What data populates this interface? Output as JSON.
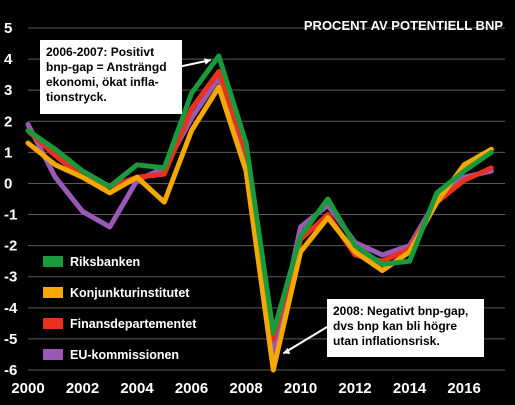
{
  "chart_data": {
    "type": "line",
    "title": "PROCENT AV POTENTIELL BNP",
    "xlabel": "",
    "ylabel": "",
    "x": [
      2000,
      2001,
      2002,
      2003,
      2004,
      2005,
      2006,
      2007,
      2008,
      2009,
      2010,
      2011,
      2012,
      2013,
      2014,
      2015,
      2016,
      2017
    ],
    "x_ticks": [
      "2000",
      "2002",
      "2004",
      "2006",
      "2008",
      "2010",
      "2012",
      "2014",
      "2016"
    ],
    "y_ticks": [
      "5",
      "4",
      "3",
      "2",
      "1",
      "0",
      "-1",
      "-2",
      "-3",
      "-4",
      "-5",
      "-6"
    ],
    "xlim": [
      2000,
      2017.5
    ],
    "ylim": [
      -6,
      5
    ],
    "grid": true,
    "legend_position": "bottom-left",
    "series": [
      {
        "name": "EU-kommissionen",
        "color": "#9b59b6",
        "values": [
          1.9,
          0.2,
          -0.9,
          -1.4,
          0.1,
          0.5,
          2.1,
          3.4,
          0.8,
          -5.5,
          -1.4,
          -0.7,
          -1.9,
          -2.3,
          -2.0,
          -0.5,
          0.2,
          0.4
        ]
      },
      {
        "name": "Finansdepartementet",
        "color": "#e8321e",
        "values": [
          1.7,
          0.9,
          0.2,
          -0.1,
          0.2,
          0.3,
          2.4,
          3.6,
          1.0,
          -5.0,
          -1.8,
          -1.0,
          -2.3,
          -2.5,
          -2.1,
          -0.6,
          0.1,
          0.5
        ]
      },
      {
        "name": "Konjunkturinstitutet",
        "color": "#f5a800",
        "values": [
          1.3,
          0.6,
          0.2,
          -0.3,
          0.2,
          -0.6,
          1.7,
          3.1,
          0.4,
          -6.0,
          -2.2,
          -1.1,
          -2.2,
          -2.8,
          -2.2,
          -0.6,
          0.6,
          1.1
        ]
      },
      {
        "name": "Riksbanken",
        "color": "#1a9a3c",
        "values": [
          1.7,
          1.1,
          0.4,
          -0.1,
          0.6,
          0.5,
          2.9,
          4.1,
          1.3,
          -4.8,
          -1.7,
          -0.5,
          -2.0,
          -2.6,
          -2.5,
          -0.3,
          0.4,
          1.0
        ]
      }
    ],
    "legend_order": [
      "Riksbanken",
      "Konjunkturinstitutet",
      "Finansdepartementet",
      "EU-kommissionen"
    ],
    "annotations": [
      {
        "lines": [
          "2006-2007: Positivt",
          "bnp-gap = Ansträngd",
          "ekonomi, ökat infla-",
          "tionstryck."
        ],
        "target": {
          "x": 2007,
          "y": 4.1
        }
      },
      {
        "lines": [
          "2008: Negativt bnp-gap,",
          "dvs bnp kan bli högre",
          "utan inflationsrisk."
        ],
        "target": {
          "x": 2009,
          "y": -5.4
        }
      }
    ]
  }
}
